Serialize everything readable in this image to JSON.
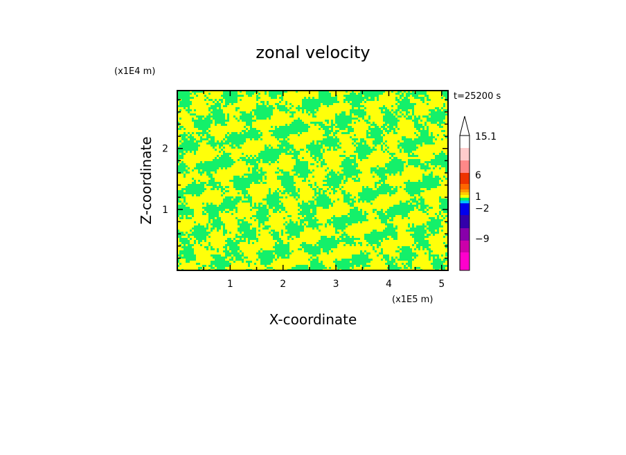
{
  "chart_data": {
    "type": "heatmap",
    "title": "zonal velocity",
    "xlabel": "X-coordinate",
    "ylabel": "Z-coordinate",
    "x_unit": "(x1E5 m)",
    "y_unit": "(x1E4 m)",
    "time_label": "t=25200 s",
    "xlim": [
      0,
      5.12
    ],
    "ylim": [
      0,
      2.95
    ],
    "x_ticks": [
      "1",
      "2",
      "3",
      "4",
      "5"
    ],
    "y_ticks": [
      "1",
      "2"
    ],
    "colorbar": {
      "labels": [
        "15.1",
        "6",
        "1",
        "−2",
        "−9"
      ],
      "colors": [
        "#ff00cc",
        "#cc00aa",
        "#8800aa",
        "#3300aa",
        "#0000ee",
        "#00c0ff",
        "#00ee66",
        "#ffff00",
        "#ffcc00",
        "#ff9900",
        "#ff6600",
        "#ee3300",
        "#ff8888",
        "#ffcccc",
        "#ffffff"
      ]
    },
    "field_colors": {
      "low": "#14f06a",
      "high": "#ffff0a"
    },
    "grid": false
  }
}
